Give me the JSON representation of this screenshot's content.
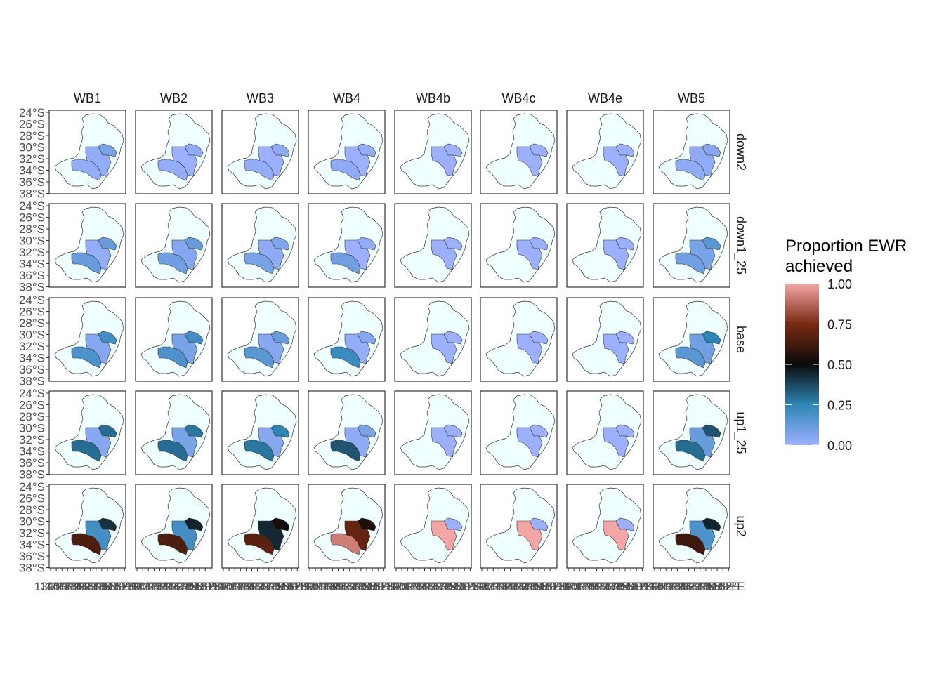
{
  "columns": [
    "WB1",
    "WB2",
    "WB3",
    "WB4",
    "WB4b",
    "WB4c",
    "WB4e",
    "WB5"
  ],
  "rows": [
    "down2",
    "down1_25",
    "base",
    "up1_25",
    "up2"
  ],
  "y_ticks": [
    "24°S",
    "26°S",
    "28°S",
    "30°S",
    "32°S",
    "34°S",
    "36°S",
    "38°S"
  ],
  "x_ticks_note": "139°E 140°E 141°E 142°E 143°E 144°E 145°E 146°E 147°E 148°E 149°E 150°E 151°E 152°E (overlapping)",
  "x_ticks": [
    "139°E",
    "140°E",
    "141°E",
    "142°E",
    "143°E",
    "144°E",
    "145°E",
    "146°E",
    "147°E",
    "148°E",
    "149°E",
    "150°E",
    "151°E",
    "152°E"
  ],
  "legend": {
    "title_line1": "Proportion EWR",
    "title_line2": "achieved",
    "labels": [
      "1.00",
      "0.75",
      "0.50",
      "0.25",
      "0.00"
    ],
    "gradient_colors": [
      "#f4a6a6",
      "#7a2a12",
      "#0a0a0a",
      "#2e86b5",
      "#9db0ff"
    ]
  },
  "colors": {
    "basin_fill": "#f0ffff",
    "panel_border": "#333333",
    "outline": "#333333"
  },
  "chart_data": {
    "type": "heatmap",
    "regions": [
      "north_east",
      "middle",
      "south_west"
    ],
    "value_scale": [
      0,
      1
    ],
    "values": {
      "down2": {
        "WB1": [
          0.08,
          0.02,
          0.02
        ],
        "WB2": [
          0.03,
          0.0,
          0.02
        ],
        "WB3": [
          0.03,
          0.0,
          0.02
        ],
        "WB4": [
          0.02,
          0.0,
          0.03
        ],
        "WB4b": [
          0.0,
          0.0,
          null
        ],
        "WB4c": [
          0.0,
          0.0,
          null
        ],
        "WB4e": [
          0.0,
          0.0,
          null
        ],
        "WB5": [
          0.05,
          0.03,
          0.03
        ]
      },
      "down1_25": {
        "WB1": [
          0.12,
          0.02,
          0.12
        ],
        "WB2": [
          0.12,
          0.05,
          0.1
        ],
        "WB3": [
          0.06,
          0.03,
          0.08
        ],
        "WB4": [
          0.02,
          0.0,
          0.1
        ],
        "WB4b": [
          0.0,
          0.0,
          null
        ],
        "WB4c": [
          0.0,
          0.0,
          null
        ],
        "WB4e": [
          0.0,
          0.0,
          null
        ],
        "WB5": [
          0.15,
          0.08,
          0.1
        ]
      },
      "base": {
        "WB1": [
          0.2,
          0.05,
          0.18
        ],
        "WB2": [
          0.2,
          0.08,
          0.18
        ],
        "WB3": [
          0.12,
          0.05,
          0.15
        ],
        "WB4": [
          0.05,
          0.02,
          0.22
        ],
        "WB4b": [
          0.0,
          0.0,
          null
        ],
        "WB4c": [
          0.0,
          0.0,
          null
        ],
        "WB4e": [
          0.0,
          0.0,
          null
        ],
        "WB5": [
          0.25,
          0.1,
          0.15
        ]
      },
      "up1_25": {
        "WB1": [
          0.3,
          0.05,
          0.3
        ],
        "WB2": [
          0.28,
          0.08,
          0.3
        ],
        "WB3": [
          0.25,
          0.05,
          0.28
        ],
        "WB4": [
          0.08,
          0.03,
          0.35
        ],
        "WB4b": [
          0.0,
          0.0,
          null
        ],
        "WB4c": [
          0.0,
          0.0,
          null
        ],
        "WB4e": [
          0.0,
          0.0,
          null
        ],
        "WB5": [
          0.35,
          0.12,
          0.3
        ]
      },
      "up2": {
        "WB1": [
          0.42,
          0.2,
          0.65
        ],
        "WB2": [
          0.45,
          0.2,
          0.65
        ],
        "WB3": [
          0.52,
          0.44,
          0.68
        ],
        "WB4": [
          0.55,
          0.7,
          0.92
        ],
        "WB4b": [
          0.0,
          1.0,
          null
        ],
        "WB4c": [
          0.0,
          1.0,
          null
        ],
        "WB4e": [
          0.0,
          1.0,
          null
        ],
        "WB5": [
          0.45,
          0.18,
          0.62
        ]
      }
    }
  }
}
